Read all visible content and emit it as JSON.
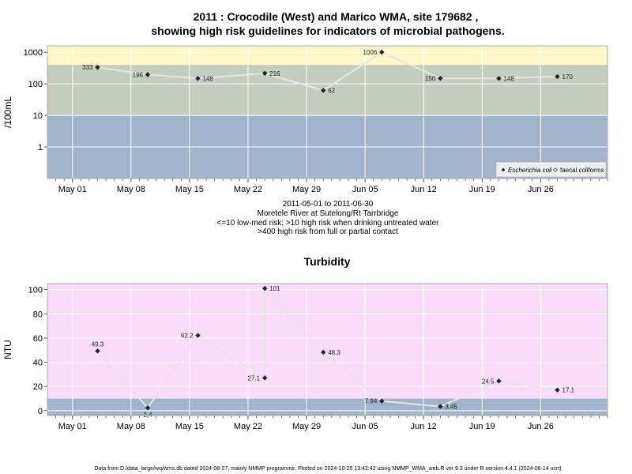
{
  "chart_data": [
    {
      "type": "line",
      "title_line1": "2011 : Crocodile (West) and Marico WMA, site 179682 ,",
      "title_line2": "showing high risk guidelines for indicators of microbial pathogens.",
      "ylabel": "/100mL",
      "yscale": "log",
      "ylim": [
        0.1,
        1600
      ],
      "yticks": [
        "1",
        "10",
        "100",
        "1000"
      ],
      "xticks": [
        "May 01",
        "May 08",
        "May 15",
        "May 22",
        "May 29",
        "Jun 05",
        "Jun 12",
        "Jun 19",
        "Jun 26"
      ],
      "xlim": [
        "2011-04-28",
        "2011-07-04"
      ],
      "grid": true,
      "bands": [
        {
          "from": 0.1,
          "to": 10,
          "color": "#a2b4cc"
        },
        {
          "from": 10,
          "to": 400,
          "color": "#c5cdbf"
        },
        {
          "from": 400,
          "to": 1600,
          "color": "#fff8c6"
        }
      ],
      "legend_position": "bottom-right",
      "legend": [
        "Escherichia coli",
        "faecal coliforms"
      ],
      "series": [
        {
          "name": "Escherichia coli",
          "points": [
            {
              "date": "2011-05-04",
              "value": 333,
              "label": "333",
              "pos": "left"
            },
            {
              "date": "2011-05-10",
              "value": 196,
              "label": "196",
              "pos": "left"
            },
            {
              "date": "2011-05-16",
              "value": 148,
              "label": "148",
              "pos": "right"
            },
            {
              "date": "2011-05-24",
              "value": 216,
              "label": "216",
              "pos": "right"
            },
            {
              "date": "2011-05-31",
              "value": 62,
              "label": "62",
              "pos": "right"
            },
            {
              "date": "2011-06-07",
              "value": 1006,
              "label": "1006",
              "pos": "left"
            },
            {
              "date": "2011-06-14",
              "value": 150,
              "label": "150",
              "pos": "left"
            },
            {
              "date": "2011-06-21",
              "value": 148,
              "label": "148",
              "pos": "right"
            },
            {
              "date": "2011-06-28",
              "value": 170,
              "label": "170",
              "pos": "right"
            }
          ]
        }
      ]
    },
    {
      "type": "line",
      "title": "Turbidity",
      "ylabel": "NTU",
      "ylim": [
        -4,
        105
      ],
      "yticks": [
        "0",
        "20",
        "40",
        "60",
        "80",
        "100"
      ],
      "xticks": [
        "May 01",
        "May 08",
        "May 15",
        "May 22",
        "May 29",
        "Jun 05",
        "Jun 12",
        "Jun 19",
        "Jun 26"
      ],
      "xlim": [
        "2011-04-28",
        "2011-07-04"
      ],
      "grid": true,
      "bands": [
        {
          "from": -4,
          "to": 10,
          "color": "#a2b4cc"
        },
        {
          "from": 10,
          "to": 105,
          "color": "#fbdcfb"
        }
      ],
      "series": [
        {
          "name": "Turbidity",
          "points": [
            {
              "date": "2011-05-04",
              "value": 49.3,
              "label": "49.3",
              "pos": "above"
            },
            {
              "date": "2011-05-10",
              "value": 2.4,
              "label": "2.4",
              "pos": "below"
            },
            {
              "date": "2011-05-16",
              "value": 62.2,
              "label": "62.2",
              "pos": "left"
            },
            {
              "date": "2011-05-24",
              "value": 27.1,
              "label": "27.1",
              "pos": "left"
            },
            {
              "date": "2011-05-24",
              "value": 101,
              "label": "101",
              "pos": "right"
            },
            {
              "date": "2011-05-31",
              "value": 48.3,
              "label": "48.3",
              "pos": "right"
            },
            {
              "date": "2011-06-07",
              "value": 7.94,
              "label": "7.94",
              "pos": "left"
            },
            {
              "date": "2011-06-14",
              "value": 3.45,
              "label": "3.45",
              "pos": "right"
            },
            {
              "date": "2011-06-21",
              "value": 24.5,
              "label": "24.5",
              "pos": "left"
            },
            {
              "date": "2011-06-28",
              "value": 17.1,
              "label": "17.1",
              "pos": "right"
            }
          ]
        }
      ]
    }
  ],
  "caption": {
    "line1": "2011-05-01 to 2011-06-30",
    "line2": "Moretele River at Sutelong/Rt Tarrbridge",
    "line3": "<=10 low-med risk; >10 high risk when drinking untreated water",
    "line4": ">400 high risk from full or partial contact"
  },
  "footer": "Data from D:/data_large/wq/wms.db dated 2024-08-27, mainly NMMP programme. Plotted on 2024-10-25 13:42:42 using NMMP_WMA_web.R ver 9.3 under R version 4.4.1 (2024-06-14 ucrt)",
  "colors": {
    "line": "#e6e6e6",
    "marker": "#222222",
    "gridline": "#ffffff"
  }
}
